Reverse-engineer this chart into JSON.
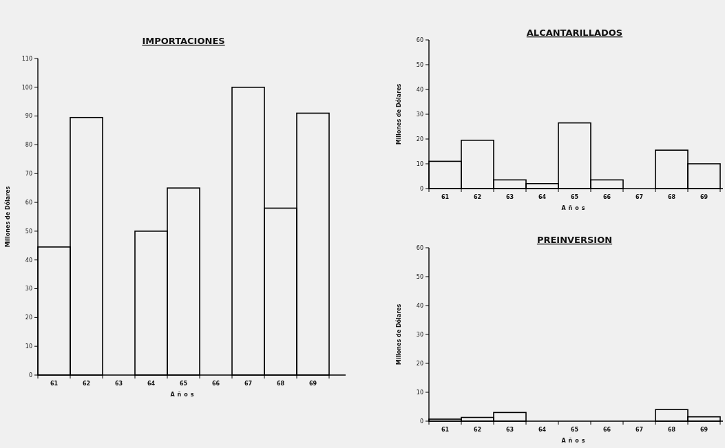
{
  "chart_data": [
    {
      "type": "bar",
      "title": "IMPORTACIONES",
      "xlabel": "Años",
      "ylabel": "Millones de Dólares",
      "categories": [
        "61",
        "62",
        "63",
        "64",
        "65",
        "66",
        "67",
        "68",
        "69"
      ],
      "values": [
        44.5,
        89.5,
        0,
        50,
        65,
        0,
        100,
        58,
        91
      ],
      "color": "#000000",
      "ylim": [
        0,
        110
      ],
      "yticks": [
        0,
        10,
        20,
        30,
        40,
        50,
        60,
        70,
        80,
        90,
        100,
        110
      ]
    },
    {
      "type": "bar",
      "title": "ALCANTARILLADOS",
      "xlabel": "Años",
      "ylabel": "Millones de Dólares",
      "categories": [
        "61",
        "62",
        "63",
        "64",
        "65",
        "66",
        "67",
        "68",
        "69"
      ],
      "values": [
        11,
        19.5,
        3.5,
        2,
        26.5,
        3.5,
        0,
        15.5,
        10
      ],
      "color": "#000000",
      "ylim": [
        0,
        60
      ],
      "yticks": [
        0,
        10,
        20,
        30,
        40,
        50,
        60
      ]
    },
    {
      "type": "bar",
      "title": "PREINVERSION",
      "xlabel": "Años",
      "ylabel": "Millones de Dólares",
      "categories": [
        "61",
        "62",
        "63",
        "64",
        "65",
        "66",
        "67",
        "68",
        "69"
      ],
      "values": [
        0.7,
        1.3,
        3,
        0,
        0,
        0,
        0,
        4,
        1.5
      ],
      "color": "#000000",
      "ylim": [
        0,
        60
      ],
      "yticks": [
        0,
        10,
        20,
        30,
        40,
        50,
        60
      ]
    }
  ]
}
